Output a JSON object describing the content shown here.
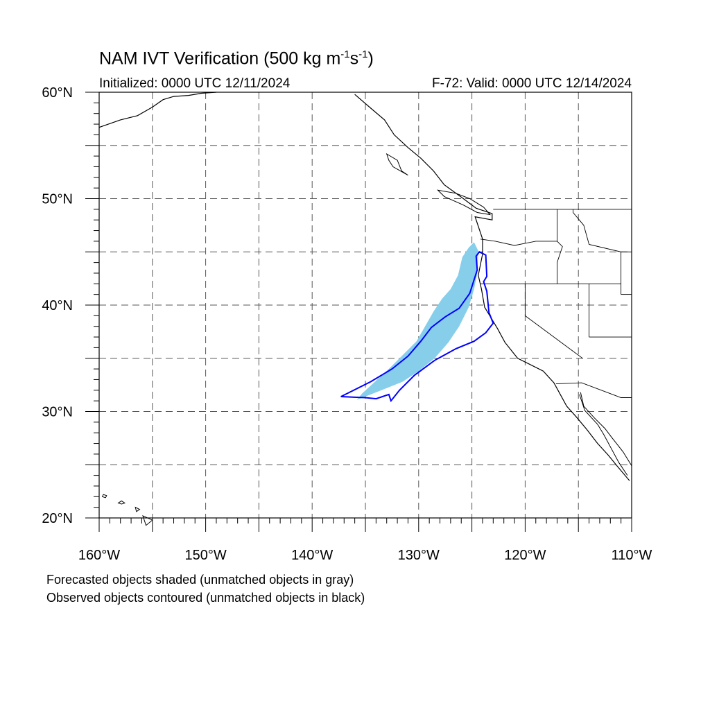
{
  "header": {
    "title_main": "NAM IVT Verification (500 kg m",
    "title_sup1": "-1",
    "title_mid": "s",
    "title_sup2": "-1",
    "title_end": ")",
    "initialized": "Initialized: 0000 UTC 12/11/2024",
    "valid": "F-72: Valid: 0000 UTC 12/14/2024"
  },
  "map": {
    "lon_range": [
      -160,
      -110
    ],
    "lat_range": [
      20,
      60
    ],
    "lat_labels": [
      {
        "lat": 60,
        "text": "60°N"
      },
      {
        "lat": 50,
        "text": "50°N"
      },
      {
        "lat": 40,
        "text": "40°N"
      },
      {
        "lat": 30,
        "text": "30°N"
      },
      {
        "lat": 20,
        "text": "20°N"
      }
    ],
    "lon_labels": [
      {
        "lon": -160,
        "text": "160°W"
      },
      {
        "lon": -150,
        "text": "150°W"
      },
      {
        "lon": -140,
        "text": "140°W"
      },
      {
        "lon": -130,
        "text": "130°W"
      },
      {
        "lon": -120,
        "text": "120°W"
      },
      {
        "lon": -110,
        "text": "110°W"
      }
    ],
    "forecast_color": "#87ceeb",
    "observed_color": "#0000ff",
    "coast_color": "#000000",
    "forecast_object": [
      [
        -135.8,
        31.1
      ],
      [
        -134.5,
        31.6
      ],
      [
        -133,
        32.2
      ],
      [
        -131.5,
        32.8
      ],
      [
        -130,
        33.8
      ],
      [
        -128.5,
        35.0
      ],
      [
        -127.2,
        36.5
      ],
      [
        -126.2,
        38.0
      ],
      [
        -125.3,
        39.8
      ],
      [
        -124.8,
        41.5
      ],
      [
        -124.5,
        43.0
      ],
      [
        -124.4,
        45.1
      ],
      [
        -124.8,
        45.9
      ],
      [
        -125.3,
        45.4
      ],
      [
        -125.9,
        44.5
      ],
      [
        -126.3,
        42.8
      ],
      [
        -127.0,
        41.5
      ],
      [
        -127.8,
        40.6
      ],
      [
        -128.6,
        39.4
      ],
      [
        -129.4,
        38.0
      ],
      [
        -130.2,
        36.6
      ],
      [
        -131.3,
        35.5
      ],
      [
        -132.6,
        34.2
      ],
      [
        -134.0,
        32.9
      ],
      [
        -135.3,
        31.7
      ]
    ],
    "observed_object": [
      [
        -137.3,
        31.4
      ],
      [
        -136.5,
        31.8
      ],
      [
        -134.5,
        32.8
      ],
      [
        -132.5,
        34.0
      ],
      [
        -131.0,
        35.2
      ],
      [
        -129.8,
        36.6
      ],
      [
        -128.8,
        37.9
      ],
      [
        -127.5,
        38.9
      ],
      [
        -126.2,
        39.7
      ],
      [
        -125.2,
        41.1
      ],
      [
        -124.5,
        43.3
      ],
      [
        -124.6,
        44.6
      ],
      [
        -124.3,
        45.0
      ],
      [
        -123.7,
        44.7
      ],
      [
        -123.6,
        42.7
      ],
      [
        -123.9,
        42.2
      ],
      [
        -123.6,
        41.3
      ],
      [
        -123.4,
        39.3
      ],
      [
        -123.0,
        38.3
      ],
      [
        -123.7,
        37.4
      ],
      [
        -124.8,
        36.6
      ],
      [
        -126.5,
        35.9
      ],
      [
        -128.5,
        34.8
      ],
      [
        -130.4,
        33.4
      ],
      [
        -131.8,
        32.0
      ],
      [
        -132.6,
        31.0
      ],
      [
        -132.8,
        31.6
      ],
      [
        -134.0,
        31.2
      ],
      [
        -135.0,
        31.3
      ]
    ],
    "coast_north_america": [
      [
        -136,
        59.8
      ],
      [
        -134.5,
        58.5
      ],
      [
        -133.2,
        57.4
      ],
      [
        -132.3,
        56.0
      ],
      [
        -131.0,
        54.8
      ],
      [
        -129.8,
        53.8
      ],
      [
        -128.6,
        52.6
      ],
      [
        -127.6,
        51.3
      ],
      [
        -125.8,
        50.0
      ],
      [
        -124.6,
        49.1
      ],
      [
        -123.1,
        48.6
      ],
      [
        -123.1,
        48.0
      ],
      [
        -124.7,
        48.3
      ],
      [
        -124.2,
        46.8
      ],
      [
        -124.0,
        46.2
      ],
      [
        -124.0,
        44.8
      ],
      [
        -124.4,
        42.8
      ],
      [
        -124.1,
        41.5
      ],
      [
        -123.8,
        39.8
      ],
      [
        -122.6,
        37.8
      ],
      [
        -121.9,
        36.5
      ],
      [
        -120.7,
        35.0
      ],
      [
        -118.3,
        33.8
      ],
      [
        -117.3,
        32.7
      ],
      [
        -116.7,
        31.6
      ],
      [
        -116.1,
        30.5
      ],
      [
        -115.2,
        29.5
      ],
      [
        -114.2,
        28.3
      ],
      [
        -113.2,
        27.0
      ],
      [
        -112.2,
        25.9
      ],
      [
        -111.3,
        24.8
      ],
      [
        -110.2,
        23.5
      ]
    ],
    "coast_alaska": [
      [
        -160,
        56.7
      ],
      [
        -158.0,
        57.4
      ],
      [
        -156.4,
        57.8
      ],
      [
        -155.0,
        58.6
      ],
      [
        -154.0,
        59.3
      ],
      [
        -153.0,
        59.6
      ],
      [
        -151.6,
        59.7
      ],
      [
        -150.4,
        59.9
      ],
      [
        -149.0,
        60.0
      ]
    ],
    "coast_gulf_california": [
      [
        -114.8,
        31.8
      ],
      [
        -114.5,
        30.5
      ],
      [
        -113.5,
        29.4
      ],
      [
        -112.5,
        28.4
      ],
      [
        -111.9,
        27.6
      ],
      [
        -110.8,
        26.2
      ],
      [
        -110.0,
        24.9
      ],
      [
        -110,
        23.6
      ]
    ],
    "baja_east": [
      [
        -114.9,
        31.6
      ],
      [
        -114.4,
        30.1
      ],
      [
        -113.2,
        28.8
      ],
      [
        -112.6,
        27.8
      ],
      [
        -111.9,
        26.5
      ],
      [
        -111.2,
        25.2
      ],
      [
        -110.4,
        24.0
      ]
    ],
    "islands_hawaii": [
      [
        [
          -159.6,
          22.2
        ],
        [
          -159.3,
          22.1
        ],
        [
          -159.4,
          21.9
        ],
        [
          -159.7,
          22.0
        ]
      ],
      [
        [
          -157.9,
          21.6
        ],
        [
          -157.6,
          21.4
        ],
        [
          -157.9,
          21.3
        ],
        [
          -158.2,
          21.4
        ]
      ],
      [
        [
          -156.6,
          21.0
        ],
        [
          -156.2,
          20.8
        ],
        [
          -156.5,
          20.6
        ]
      ],
      [
        [
          -155.9,
          20.2
        ],
        [
          -155.0,
          19.8
        ],
        [
          -155.6,
          19.3
        ]
      ]
    ],
    "islands_bc": [
      [
        [
          -133.0,
          54.2
        ],
        [
          -132.0,
          53.6
        ],
        [
          -131.6,
          52.6
        ],
        [
          -131.0,
          52.2
        ],
        [
          -132.4,
          53.0
        ],
        [
          -132.8,
          53.6
        ]
      ],
      [
        [
          -128.2,
          50.8
        ],
        [
          -126.5,
          50.5
        ],
        [
          -125.2,
          50.0
        ],
        [
          -123.9,
          49.2
        ],
        [
          -123.3,
          48.5
        ],
        [
          -124.5,
          48.7
        ],
        [
          -125.8,
          49.4
        ],
        [
          -127.6,
          50.2
        ]
      ]
    ],
    "state_borders": [
      [
        [
          -123,
          49
        ],
        [
          -110,
          49
        ]
      ],
      [
        [
          -124.2,
          46.2
        ],
        [
          -122.8,
          46.0
        ],
        [
          -121.0,
          45.6
        ],
        [
          -119.0,
          46.0
        ],
        [
          -117.0,
          46.0
        ]
      ],
      [
        [
          -117.0,
          49
        ],
        [
          -117.0,
          46.0
        ],
        [
          -116.5,
          45.5
        ],
        [
          -117.0,
          44.0
        ],
        [
          -117.0,
          42.0
        ]
      ],
      [
        [
          -124.2,
          42.0
        ],
        [
          -117.0,
          42.0
        ],
        [
          -111.0,
          42.0
        ]
      ],
      [
        [
          -120.0,
          42.0
        ],
        [
          -120.0,
          39.0
        ],
        [
          -114.6,
          35.0
        ]
      ],
      [
        [
          -114.0,
          42.0
        ],
        [
          -114.0,
          37.0
        ]
      ],
      [
        [
          -114.0,
          37.0
        ],
        [
          -110.0,
          37.0
        ]
      ],
      [
        [
          -117.1,
          32.6
        ],
        [
          -114.7,
          32.7
        ],
        [
          -111.0,
          31.3
        ],
        [
          -110,
          31.3
        ]
      ],
      [
        [
          -111.0,
          45.0
        ],
        [
          -110,
          45.0
        ]
      ],
      [
        [
          -111,
          45
        ],
        [
          -111,
          41
        ]
      ],
      [
        [
          -111,
          41
        ],
        [
          -110,
          41
        ]
      ],
      [
        [
          -115.5,
          49
        ],
        [
          -115.5,
          48.7
        ],
        [
          -114.5,
          47.5
        ],
        [
          -114,
          45.7
        ],
        [
          -111,
          45
        ]
      ]
    ]
  },
  "footer": {
    "line1": "Forecasted objects shaded (unmatched objects in gray)",
    "line2": "Observed objects contoured (unmatched objects in black)"
  }
}
